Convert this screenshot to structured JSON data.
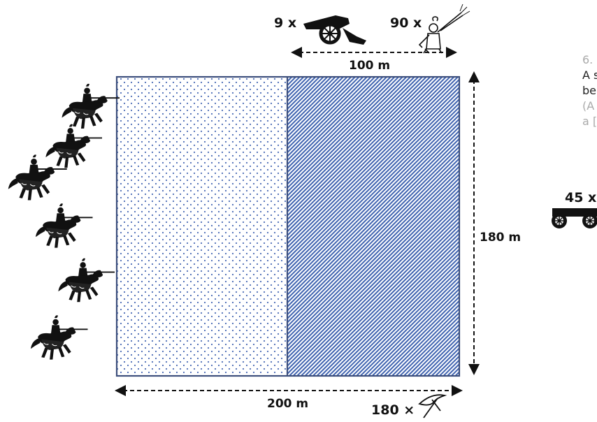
{
  "field": {
    "width_label": "200 m",
    "height_label": "180 m",
    "top_segment_label": "100 m"
  },
  "units": {
    "cannons": {
      "count_label": "9 x",
      "icon": "cannon-icon"
    },
    "musketeers": {
      "count_label": "90 x",
      "icon": "musketeer-icon"
    },
    "wagons": {
      "count_label": "45 x",
      "icon": "wagon-icon"
    },
    "pickaxes": {
      "count_label": "180 ×",
      "icon": "pickaxe-icon"
    },
    "knights": {
      "count": 6,
      "icon": "knight-on-horse-icon"
    }
  },
  "side_text": {
    "line1": "6.",
    "line2": "A s",
    "line3": "be",
    "line4": "(A",
    "line5": "a ["
  },
  "colors": {
    "border": "#3d4f7c",
    "dots": "#4a6bb5",
    "hatch": "#3f63b0",
    "side_text_faint": "#aaaaaa",
    "side_text_dark": "#222222"
  }
}
